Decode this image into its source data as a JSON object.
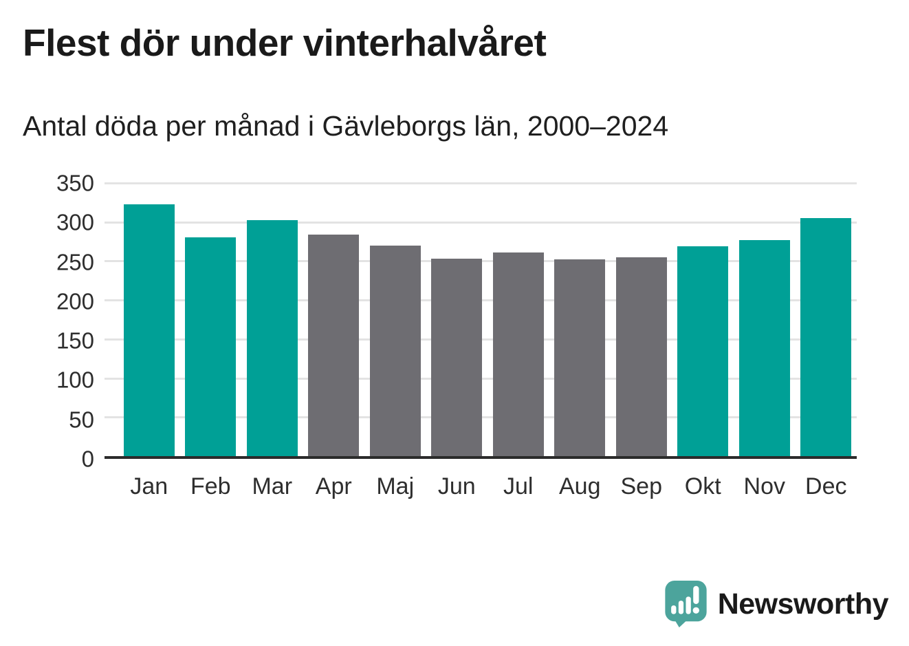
{
  "header": {
    "title": "Flest dör under vinterhalvåret",
    "subtitle": "Antal döda per månad i Gävleborgs län, 2000–2024"
  },
  "chart_data": {
    "type": "bar",
    "title": "Flest dör under vinterhalvåret",
    "subtitle": "Antal döda per månad i Gävleborgs län, 2000–2024",
    "categories": [
      "Jan",
      "Feb",
      "Mar",
      "Apr",
      "Maj",
      "Jun",
      "Jul",
      "Aug",
      "Sep",
      "Okt",
      "Nov",
      "Dec"
    ],
    "values": [
      323,
      280,
      302,
      284,
      270,
      253,
      261,
      252,
      255,
      269,
      277,
      305
    ],
    "bar_colors": [
      "#00A096",
      "#00A096",
      "#00A096",
      "#6E6D72",
      "#6E6D72",
      "#6E6D72",
      "#6E6D72",
      "#6E6D72",
      "#6E6D72",
      "#00A096",
      "#00A096",
      "#00A096"
    ],
    "highlight_color": "#00A096",
    "muted_color": "#6E6D72",
    "xlabel": "",
    "ylabel": "",
    "ylim": [
      0,
      350
    ],
    "yticks": [
      0,
      50,
      100,
      150,
      200,
      250,
      300,
      350
    ],
    "grid": "horizontal",
    "gridline_color": "#e3e3e3",
    "axis_color": "#2b2b2b",
    "tick_label_color": "#2e2e2e",
    "legend_position": "none"
  },
  "branding": {
    "logo_text": "Newsworthy",
    "logo_text_color": "#3E948C",
    "logo_icon": "newsworthy-speech-bubble-bar-chart-icon",
    "logo_icon_color": "#4CA49C"
  }
}
